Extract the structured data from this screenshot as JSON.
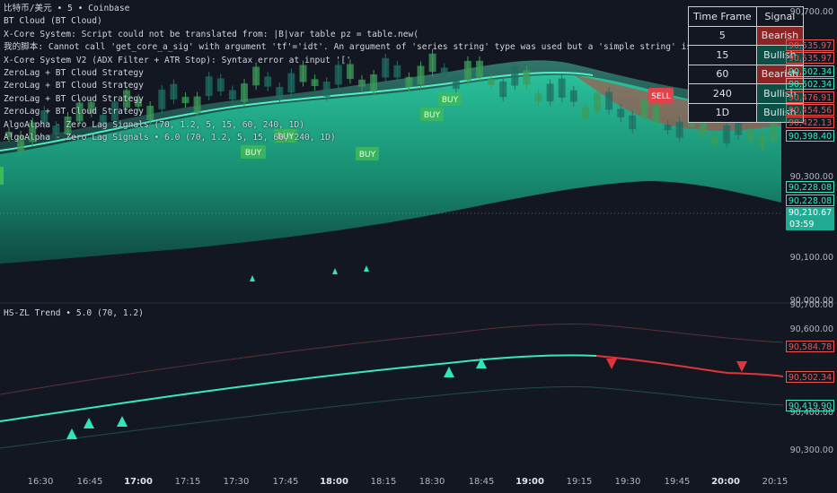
{
  "colors": {
    "bull": "#26d7a6",
    "bear": "#e03a3a",
    "candle_up": "#3c9c5a",
    "candle_down": "#1e7a6a",
    "bg": "#131722"
  },
  "overlay_lines": [
    "比特币/美元 • 5 • Coinbase",
    "BT Cloud (BT Cloud)",
    "X-Core System: Script could not be translated from: |B|var table pz = table.new(",
    "我的脚本: Cannot call 'get_core_a_sig' with argument 'tf'='idt'. An argument of 'series string' type was used but a 'simple string' is expected.",
    "X-Core System V2 (ADX Filter + ATR Stop): Syntax error at input '['",
    "ZeroLag + BT Cloud Strategy",
    "ZeroLag + BT Cloud Strategy",
    "ZeroLag + BT Cloud Strategy",
    "ZeroLag + BT Cloud Strategy",
    "AlgoAlpha - Zero Lag Signals (70, 1.2, 5, 15, 60, 240, 1D)",
    "AlgoAlpha - Zero Lag Signals • 6.0 (70, 1.2, 5, 15, 60, 240, 1D)"
  ],
  "signal_table": {
    "headers": [
      "Time Frame",
      "Signal"
    ],
    "rows": [
      {
        "tf": "5",
        "signal": "Bearish",
        "state": "bear"
      },
      {
        "tf": "15",
        "signal": "Bullish",
        "state": "bull"
      },
      {
        "tf": "60",
        "signal": "Bearish",
        "state": "bear"
      },
      {
        "tf": "240",
        "signal": "Bullish",
        "state": "bull"
      },
      {
        "tf": "1D",
        "signal": "Bullish",
        "state": "bull"
      }
    ]
  },
  "main_axis_labels": [
    "90,700.00",
    "90,300.00",
    "90,100.00",
    "90,000.00"
  ],
  "main_price_badges": [
    {
      "value": "90,535.97",
      "state": "bear"
    },
    {
      "value": "90,535.97",
      "state": "bear"
    },
    {
      "value": "90,502.34",
      "state": "bull"
    },
    {
      "value": "90,502.34",
      "state": "bull"
    },
    {
      "value": "90,476.91",
      "state": "bear"
    },
    {
      "value": "90,454.56",
      "state": "bear"
    },
    {
      "value": "90,422.13",
      "state": "bear"
    },
    {
      "value": "90,398.40",
      "state": "bull"
    },
    {
      "value": "90,228.08",
      "state": "bull"
    },
    {
      "value": "90,228.08",
      "state": "bull"
    }
  ],
  "current_price": {
    "value": "90,210.67",
    "countdown": "03:59"
  },
  "pane2": {
    "title": "HS-ZL Trend • 5.0 (70, 1.2)",
    "axis_labels": [
      "90,700.00",
      "90,600.00",
      "90,400.00",
      "90,300.00"
    ],
    "badges": [
      {
        "value": "90,584.78",
        "state": "bear"
      },
      {
        "value": "90,502.34",
        "state": "bear"
      },
      {
        "value": "90,419.90",
        "state": "bull"
      }
    ]
  },
  "signal_labels": {
    "buy": "BUY",
    "sell": "SELL"
  },
  "time_axis": [
    {
      "label": "16:30",
      "bold": false
    },
    {
      "label": "16:45",
      "bold": false
    },
    {
      "label": "17:00",
      "bold": true
    },
    {
      "label": "17:15",
      "bold": false
    },
    {
      "label": "17:30",
      "bold": false
    },
    {
      "label": "17:45",
      "bold": false
    },
    {
      "label": "18:00",
      "bold": true
    },
    {
      "label": "18:15",
      "bold": false
    },
    {
      "label": "18:30",
      "bold": false
    },
    {
      "label": "18:45",
      "bold": false
    },
    {
      "label": "19:00",
      "bold": true
    },
    {
      "label": "19:15",
      "bold": false
    },
    {
      "label": "19:30",
      "bold": false
    },
    {
      "label": "19:45",
      "bold": false
    },
    {
      "label": "20:00",
      "bold": true
    },
    {
      "label": "20:15",
      "bold": false
    }
  ]
}
